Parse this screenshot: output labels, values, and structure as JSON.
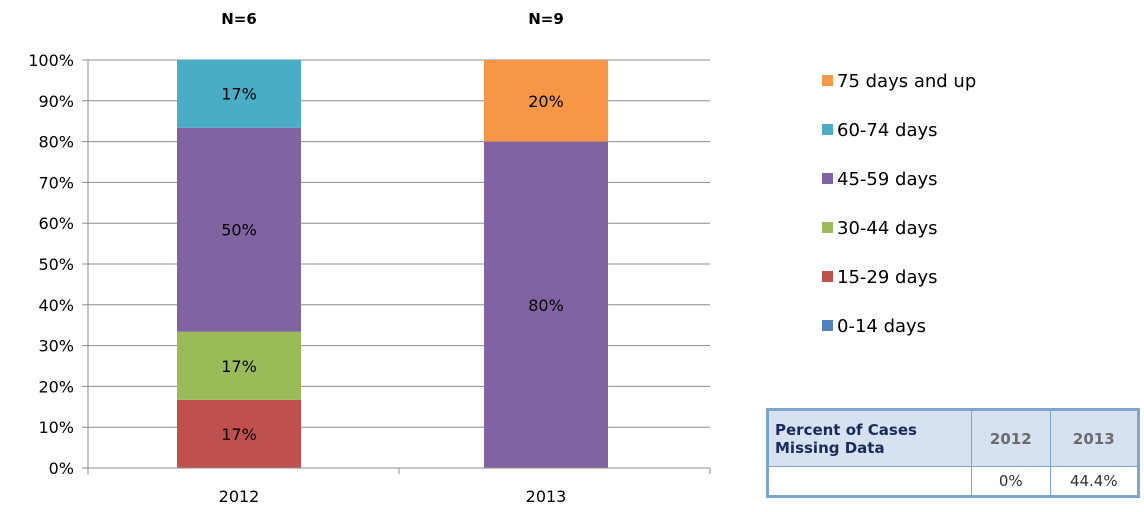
{
  "chart_data": {
    "type": "bar",
    "stacked": true,
    "categories": [
      "2012",
      "2013"
    ],
    "sample_sizes": [
      "N=6",
      "N=9"
    ],
    "ylim": [
      0,
      100
    ],
    "yticks": [
      "0%",
      "10%",
      "20%",
      "30%",
      "40%",
      "50%",
      "60%",
      "70%",
      "80%",
      "90%",
      "100%"
    ],
    "grid": true,
    "legend_position": "right",
    "series": [
      {
        "name": "0-14 days",
        "color": "#4f81bd",
        "values": [
          0,
          0
        ],
        "labels": [
          "",
          ""
        ]
      },
      {
        "name": "15-29 days",
        "color": "#c0504d",
        "values": [
          16.7,
          0
        ],
        "labels": [
          "17%",
          ""
        ]
      },
      {
        "name": "30-44 days",
        "color": "#9bbb59",
        "values": [
          16.7,
          0
        ],
        "labels": [
          "17%",
          ""
        ]
      },
      {
        "name": "45-59 days",
        "color": "#8064a2",
        "values": [
          50,
          80
        ],
        "labels": [
          "50%",
          "80%"
        ]
      },
      {
        "name": "60-74 days",
        "color": "#4bacc6",
        "values": [
          16.7,
          0
        ],
        "labels": [
          "17%",
          ""
        ]
      },
      {
        "name": "75 days and up",
        "color": "#f79646",
        "values": [
          0,
          20
        ],
        "labels": [
          "",
          "20%"
        ]
      }
    ]
  },
  "missing_table": {
    "title": "Percent of Cases Missing Data",
    "years": [
      "2012",
      "2013"
    ],
    "values": [
      "0%",
      "44.4%"
    ]
  }
}
